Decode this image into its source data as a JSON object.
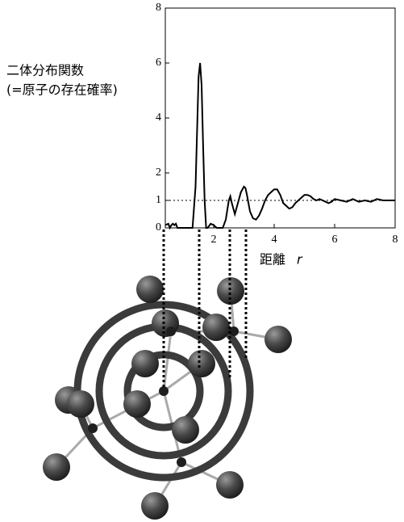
{
  "chart_data": {
    "type": "line",
    "ylabel_lines": [
      "二体分布関数",
      "(=原子の存在確率)"
    ],
    "xlabel": "距離",
    "xlabel_var": "r",
    "x": [
      0.4,
      0.5,
      0.55,
      0.6,
      0.65,
      0.7,
      0.75,
      0.8,
      0.9,
      1.3,
      1.4,
      1.45,
      1.5,
      1.55,
      1.6,
      1.65,
      1.7,
      1.75,
      1.8,
      1.9,
      2.0,
      2.1,
      2.3,
      2.4,
      2.5,
      2.55,
      2.6,
      2.7,
      2.8,
      2.9,
      3.0,
      3.05,
      3.1,
      3.2,
      3.3,
      3.4,
      3.5,
      3.6,
      3.7,
      3.8,
      3.9,
      4.0,
      4.1,
      4.2,
      4.3,
      4.4,
      4.5,
      4.6,
      4.7,
      4.8,
      4.9,
      5.0,
      5.1,
      5.2,
      5.3,
      5.4,
      5.5,
      5.6,
      5.7,
      5.8,
      5.9,
      6.0,
      6.2,
      6.4,
      6.6,
      6.8,
      7.0,
      7.2,
      7.4,
      7.6,
      7.8,
      8.0
    ],
    "values": [
      0.1,
      0.15,
      0,
      0.1,
      0.15,
      0.1,
      0.15,
      0,
      0,
      0,
      1.5,
      3.5,
      5.5,
      6.0,
      5.2,
      3,
      1,
      0,
      0,
      0.15,
      0.1,
      0,
      0,
      0.3,
      1.0,
      1.15,
      0.9,
      0.5,
      0.9,
      1.3,
      1.5,
      1.45,
      1.2,
      0.6,
      0.35,
      0.3,
      0.45,
      0.7,
      1.0,
      1.2,
      1.3,
      1.4,
      1.4,
      1.2,
      0.9,
      0.8,
      0.7,
      0.75,
      0.9,
      1.0,
      1.1,
      1.2,
      1.2,
      1.15,
      1.05,
      1.0,
      1.05,
      1.0,
      0.95,
      0.9,
      0.95,
      1.05,
      1.0,
      0.95,
      1.05,
      0.95,
      1.0,
      0.95,
      1.05,
      1.0,
      1.0,
      1.0
    ],
    "color": "#000000",
    "xlim": [
      0.4,
      8
    ],
    "xticks": [
      2,
      4,
      6,
      8
    ],
    "ylim": [
      0,
      8
    ],
    "yticks": [
      0,
      1,
      2,
      4,
      6,
      8
    ],
    "hline": 1,
    "grid": false
  }
}
